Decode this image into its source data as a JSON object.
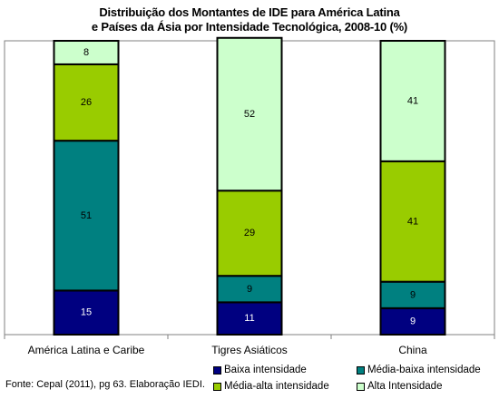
{
  "chart_data": {
    "type": "bar",
    "stacked": true,
    "title_lines": [
      "Distribuição dos Montantes de IDE para América Latina",
      "e Países da Ásia por Intensidade Tecnológica, 2008-10 (%)"
    ],
    "categories": [
      "América Latina e Caribe",
      "Tigres Asiáticos",
      "China"
    ],
    "series": [
      {
        "name": "Baixa intensidade",
        "color": "#000080",
        "text_color": "#ffffff",
        "values": [
          15,
          11,
          9
        ]
      },
      {
        "name": "Média-baixa intensidade",
        "color": "#008080",
        "text_color": "#000000",
        "values": [
          51,
          9,
          9
        ]
      },
      {
        "name": "Média-alta intensidade",
        "color": "#99CC00",
        "text_color": "#000000",
        "values": [
          26,
          29,
          41
        ]
      },
      {
        "name": "Alta Intensidade",
        "color": "#CCFFCC",
        "text_color": "#000000",
        "values": [
          8,
          52,
          41
        ]
      }
    ],
    "ylim": [
      0,
      100
    ],
    "grid": false,
    "legend_position": "bottom-right"
  },
  "source": "Fonte: Cepal (2011), pg 63. Elaboração IEDI."
}
